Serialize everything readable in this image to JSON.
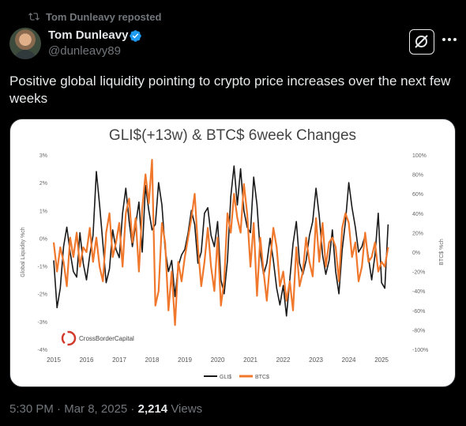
{
  "repost": {
    "label": "Tom Dunleavy reposted"
  },
  "author": {
    "name": "Tom Dunleavy",
    "handle": "@dunleavy89"
  },
  "tweet": {
    "text": "Positive global liquidity pointing to crypto price increases over the next few weeks"
  },
  "meta": {
    "time": "5:30 PM",
    "separator1": " · ",
    "date": "Mar 8, 2025",
    "separator2": " · ",
    "views_count": "2,214",
    "views_label": " Views"
  },
  "colors": {
    "background": "#000000",
    "gli": "#1a1a1a",
    "btc": "#f0782d",
    "verified": "#1d9bf0"
  },
  "chart_data": {
    "type": "line",
    "title": "GLI$(+13w) & BTC$ 6week Changes",
    "ylabel_left": "Global Liquidity %ch",
    "ylabel_right": "BTC$ %ch",
    "left_ticks": [
      "3%",
      "2%",
      "1%",
      "0%",
      "-1%",
      "-2%",
      "-3%",
      "-4%"
    ],
    "right_ticks": [
      "100%",
      "80%",
      "60%",
      "40%",
      "20%",
      "0%",
      "-20%",
      "-40%",
      "-60%",
      "-80%",
      "-100%"
    ],
    "x_ticks": [
      "2015",
      "2016",
      "2017",
      "2018",
      "2019",
      "2020",
      "2021",
      "2022",
      "2023",
      "2024",
      "2025"
    ],
    "ylim_left": [
      -4,
      3
    ],
    "ylim_right": [
      -100,
      100
    ],
    "xlim": [
      2015,
      2025.6
    ],
    "logo_text": "CrossBorderCapital",
    "legend_position": "bottom-center",
    "series": [
      {
        "name": "GLI$",
        "axis": "left",
        "x": [
          2015.0,
          2015.1,
          2015.2,
          2015.3,
          2015.4,
          2015.5,
          2015.6,
          2015.7,
          2015.8,
          2015.9,
          2016.0,
          2016.1,
          2016.2,
          2016.3,
          2016.4,
          2016.5,
          2016.6,
          2016.7,
          2016.8,
          2016.9,
          2017.0,
          2017.1,
          2017.2,
          2017.3,
          2017.4,
          2017.5,
          2017.6,
          2017.7,
          2017.8,
          2017.9,
          2018.0,
          2018.1,
          2018.2,
          2018.3,
          2018.4,
          2018.5,
          2018.6,
          2018.7,
          2018.8,
          2018.9,
          2019.0,
          2019.1,
          2019.2,
          2019.3,
          2019.4,
          2019.5,
          2019.6,
          2019.7,
          2019.8,
          2019.9,
          2020.0,
          2020.1,
          2020.2,
          2020.3,
          2020.4,
          2020.5,
          2020.6,
          2020.7,
          2020.8,
          2020.9,
          2021.0,
          2021.1,
          2021.2,
          2021.3,
          2021.4,
          2021.5,
          2021.6,
          2021.7,
          2021.8,
          2021.9,
          2022.0,
          2022.1,
          2022.2,
          2022.3,
          2022.4,
          2022.5,
          2022.6,
          2022.7,
          2022.8,
          2022.9,
          2023.0,
          2023.1,
          2023.2,
          2023.3,
          2023.4,
          2023.5,
          2023.6,
          2023.7,
          2023.8,
          2023.9,
          2024.0,
          2024.1,
          2024.2,
          2024.3,
          2024.4,
          2024.5,
          2024.6,
          2024.7,
          2024.8,
          2024.9,
          2025.0,
          2025.1,
          2025.2
        ],
        "values": [
          -0.8,
          -2.5,
          -1.8,
          -0.3,
          0.4,
          -0.5,
          -1.2,
          -1.4,
          0.2,
          -0.9,
          -1.5,
          -0.6,
          0.1,
          2.4,
          1.2,
          -0.2,
          -1.6,
          -1.1,
          0.3,
          -0.4,
          -0.7,
          0.9,
          1.8,
          0.6,
          -0.3,
          0.5,
          1.3,
          -0.5,
          1.9,
          1.0,
          0.3,
          0.5,
          2.0,
          1.2,
          -0.4,
          -1.2,
          -0.8,
          -2.1,
          -1.0,
          -0.6,
          -0.4,
          0.2,
          1.0,
          0.5,
          -0.9,
          -0.5,
          0.9,
          1.1,
          0.1,
          -0.3,
          0.6,
          -1.5,
          -2.0,
          -0.8,
          1.5,
          2.6,
          1.2,
          2.5,
          1.0,
          0.4,
          0.2,
          2.2,
          1.2,
          -0.5,
          -1.3,
          -0.9,
          0.0,
          -0.8,
          -1.8,
          -2.4,
          -1.7,
          -2.8,
          -1.5,
          -0.2,
          0.6,
          -0.9,
          -1.3,
          -0.8,
          0.1,
          0.6,
          1.8,
          0.8,
          -0.6,
          -1.3,
          -0.8,
          0.3,
          -1.2,
          -2.0,
          -0.4,
          0.6,
          2.0,
          1.1,
          0.4,
          -0.5,
          -0.3,
          0.1,
          -0.7,
          -1.5,
          -0.6,
          0.9,
          -1.6,
          -1.8,
          0.5
        ]
      },
      {
        "name": "BTC$",
        "axis": "right",
        "x": [
          2015.0,
          2015.1,
          2015.2,
          2015.3,
          2015.4,
          2015.5,
          2015.6,
          2015.7,
          2015.8,
          2015.9,
          2016.0,
          2016.1,
          2016.2,
          2016.3,
          2016.4,
          2016.5,
          2016.6,
          2016.7,
          2016.8,
          2016.9,
          2017.0,
          2017.1,
          2017.2,
          2017.3,
          2017.4,
          2017.5,
          2017.6,
          2017.7,
          2017.8,
          2017.9,
          2018.0,
          2018.1,
          2018.2,
          2018.3,
          2018.4,
          2018.5,
          2018.6,
          2018.7,
          2018.8,
          2018.9,
          2019.0,
          2019.1,
          2019.2,
          2019.3,
          2019.4,
          2019.5,
          2019.6,
          2019.7,
          2019.8,
          2019.9,
          2020.0,
          2020.1,
          2020.2,
          2020.3,
          2020.4,
          2020.5,
          2020.6,
          2020.7,
          2020.8,
          2020.9,
          2021.0,
          2021.1,
          2021.2,
          2021.3,
          2021.4,
          2021.5,
          2021.6,
          2021.7,
          2021.8,
          2021.9,
          2022.0,
          2022.1,
          2022.2,
          2022.3,
          2022.4,
          2022.5,
          2022.6,
          2022.7,
          2022.8,
          2022.9,
          2023.0,
          2023.1,
          2023.2,
          2023.3,
          2023.4,
          2023.5,
          2023.6,
          2023.7,
          2023.8,
          2023.9,
          2024.0,
          2024.1,
          2024.2,
          2024.3,
          2024.4,
          2024.5,
          2024.6,
          2024.7,
          2024.8,
          2024.9,
          2025.0,
          2025.1,
          2025.2
        ],
        "values": [
          10,
          -20,
          5,
          -10,
          -35,
          15,
          -5,
          20,
          -15,
          5,
          0,
          25,
          -10,
          15,
          -15,
          -30,
          20,
          40,
          -5,
          10,
          30,
          -15,
          40,
          55,
          10,
          35,
          -20,
          45,
          80,
          50,
          95,
          -55,
          -40,
          30,
          10,
          -60,
          -20,
          -75,
          -10,
          -30,
          -5,
          15,
          35,
          60,
          5,
          -35,
          -10,
          25,
          -15,
          -40,
          15,
          -55,
          -30,
          40,
          20,
          60,
          35,
          20,
          70,
          40,
          -15,
          30,
          -45,
          15,
          -20,
          -50,
          -10,
          25,
          5,
          -35,
          -20,
          -50,
          -30,
          -60,
          5,
          -35,
          -20,
          15,
          -10,
          -25,
          35,
          -10,
          30,
          -15,
          10,
          15,
          5,
          -30,
          25,
          40,
          30,
          -5,
          10,
          -30,
          -15,
          20,
          -10,
          -5,
          10,
          -20,
          -10,
          -15,
          5
        ]
      }
    ]
  }
}
